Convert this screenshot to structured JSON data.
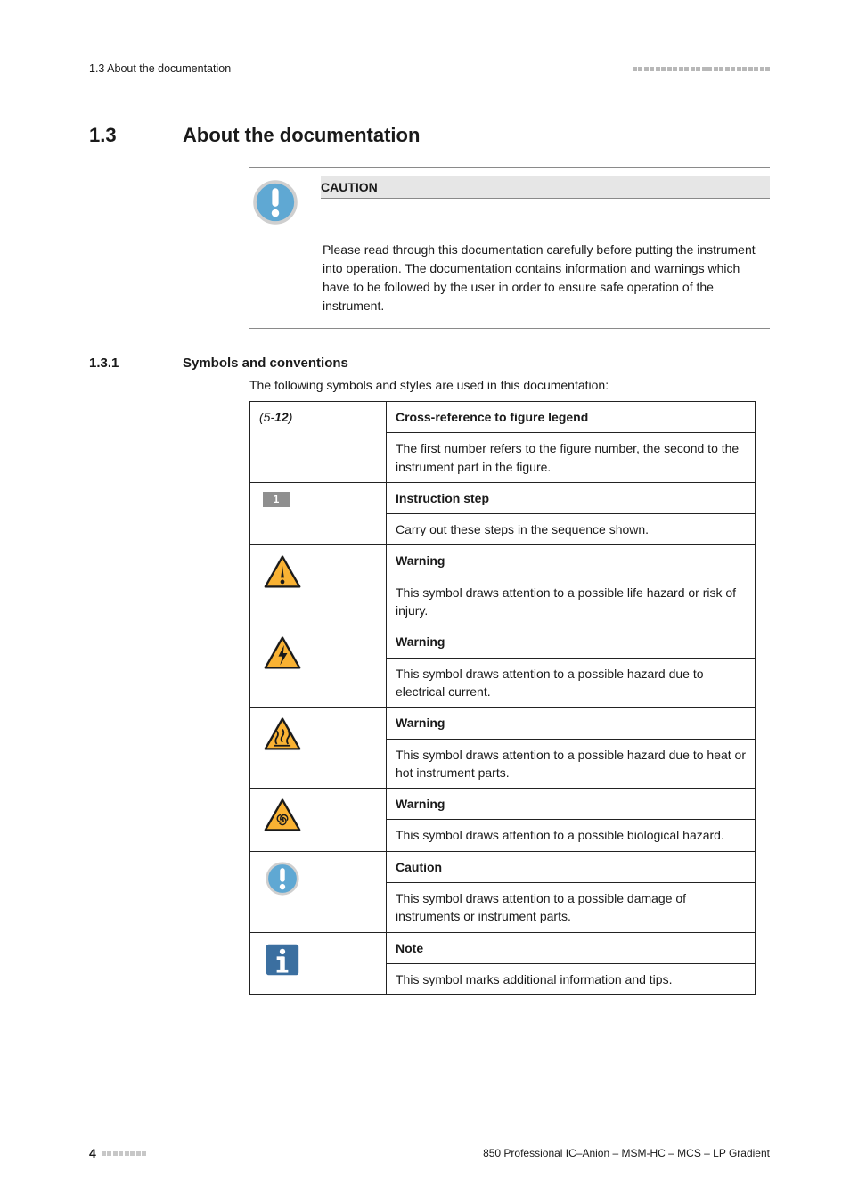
{
  "header": {
    "left": "1.3 About the documentation",
    "dots_total": 24,
    "dots_dark": 0
  },
  "section": {
    "number": "1.3",
    "title": "About the documentation"
  },
  "caution": {
    "label": "CAUTION",
    "body": "Please read through this documentation carefully before putting the instrument into operation. The documentation contains information and warnings which have to be followed by the user in order to ensure safe operation of the instrument."
  },
  "subsection": {
    "number": "1.3.1",
    "title": "Symbols and conventions",
    "intro": "The following symbols and styles are used in this documentation:"
  },
  "table": {
    "rows": [
      {
        "left_type": "xref",
        "left_prefix": "(5-",
        "left_bold": "12",
        "left_suffix": ")",
        "title": "Cross-reference to figure legend",
        "body": "The first number refers to the figure number, the second to the instrument part in the figure."
      },
      {
        "left_type": "step",
        "step_num": "1",
        "title": "Instruction step",
        "body": "Carry out these steps in the sequence shown."
      },
      {
        "left_type": "icon",
        "icon": "warning-general",
        "title": "Warning",
        "body": "This symbol draws attention to a possible life hazard or risk of injury."
      },
      {
        "left_type": "icon",
        "icon": "warning-electric",
        "title": "Warning",
        "body": "This symbol draws attention to a possible hazard due to electrical current."
      },
      {
        "left_type": "icon",
        "icon": "warning-heat",
        "title": "Warning",
        "body": "This symbol draws attention to a possible hazard due to heat or hot instrument parts."
      },
      {
        "left_type": "icon",
        "icon": "warning-bio",
        "title": "Warning",
        "body": "This symbol draws attention to a possible biological hazard."
      },
      {
        "left_type": "icon",
        "icon": "caution",
        "title": "Caution",
        "body": "This symbol draws attention to a possible damage of instruments or instrument parts."
      },
      {
        "left_type": "icon",
        "icon": "note",
        "title": "Note",
        "body": "This symbol marks additional information and tips."
      }
    ]
  },
  "footer": {
    "page_num": "4",
    "dots": 8,
    "right": "850 Professional IC–Anion – MSM-HC – MCS – LP Gradient"
  },
  "icons": {
    "warning_colors": {
      "fill": "#f9b233",
      "stroke": "#1a1a1a",
      "border": "#c0c0c0"
    },
    "caution_colors": {
      "fill": "#5fa8d3",
      "exclaim": "#ffffff",
      "border": "#c0c0c0"
    },
    "note_colors": {
      "fill": "#ffffff",
      "bg": "#3b6fa0",
      "border": "#ffffff"
    }
  }
}
